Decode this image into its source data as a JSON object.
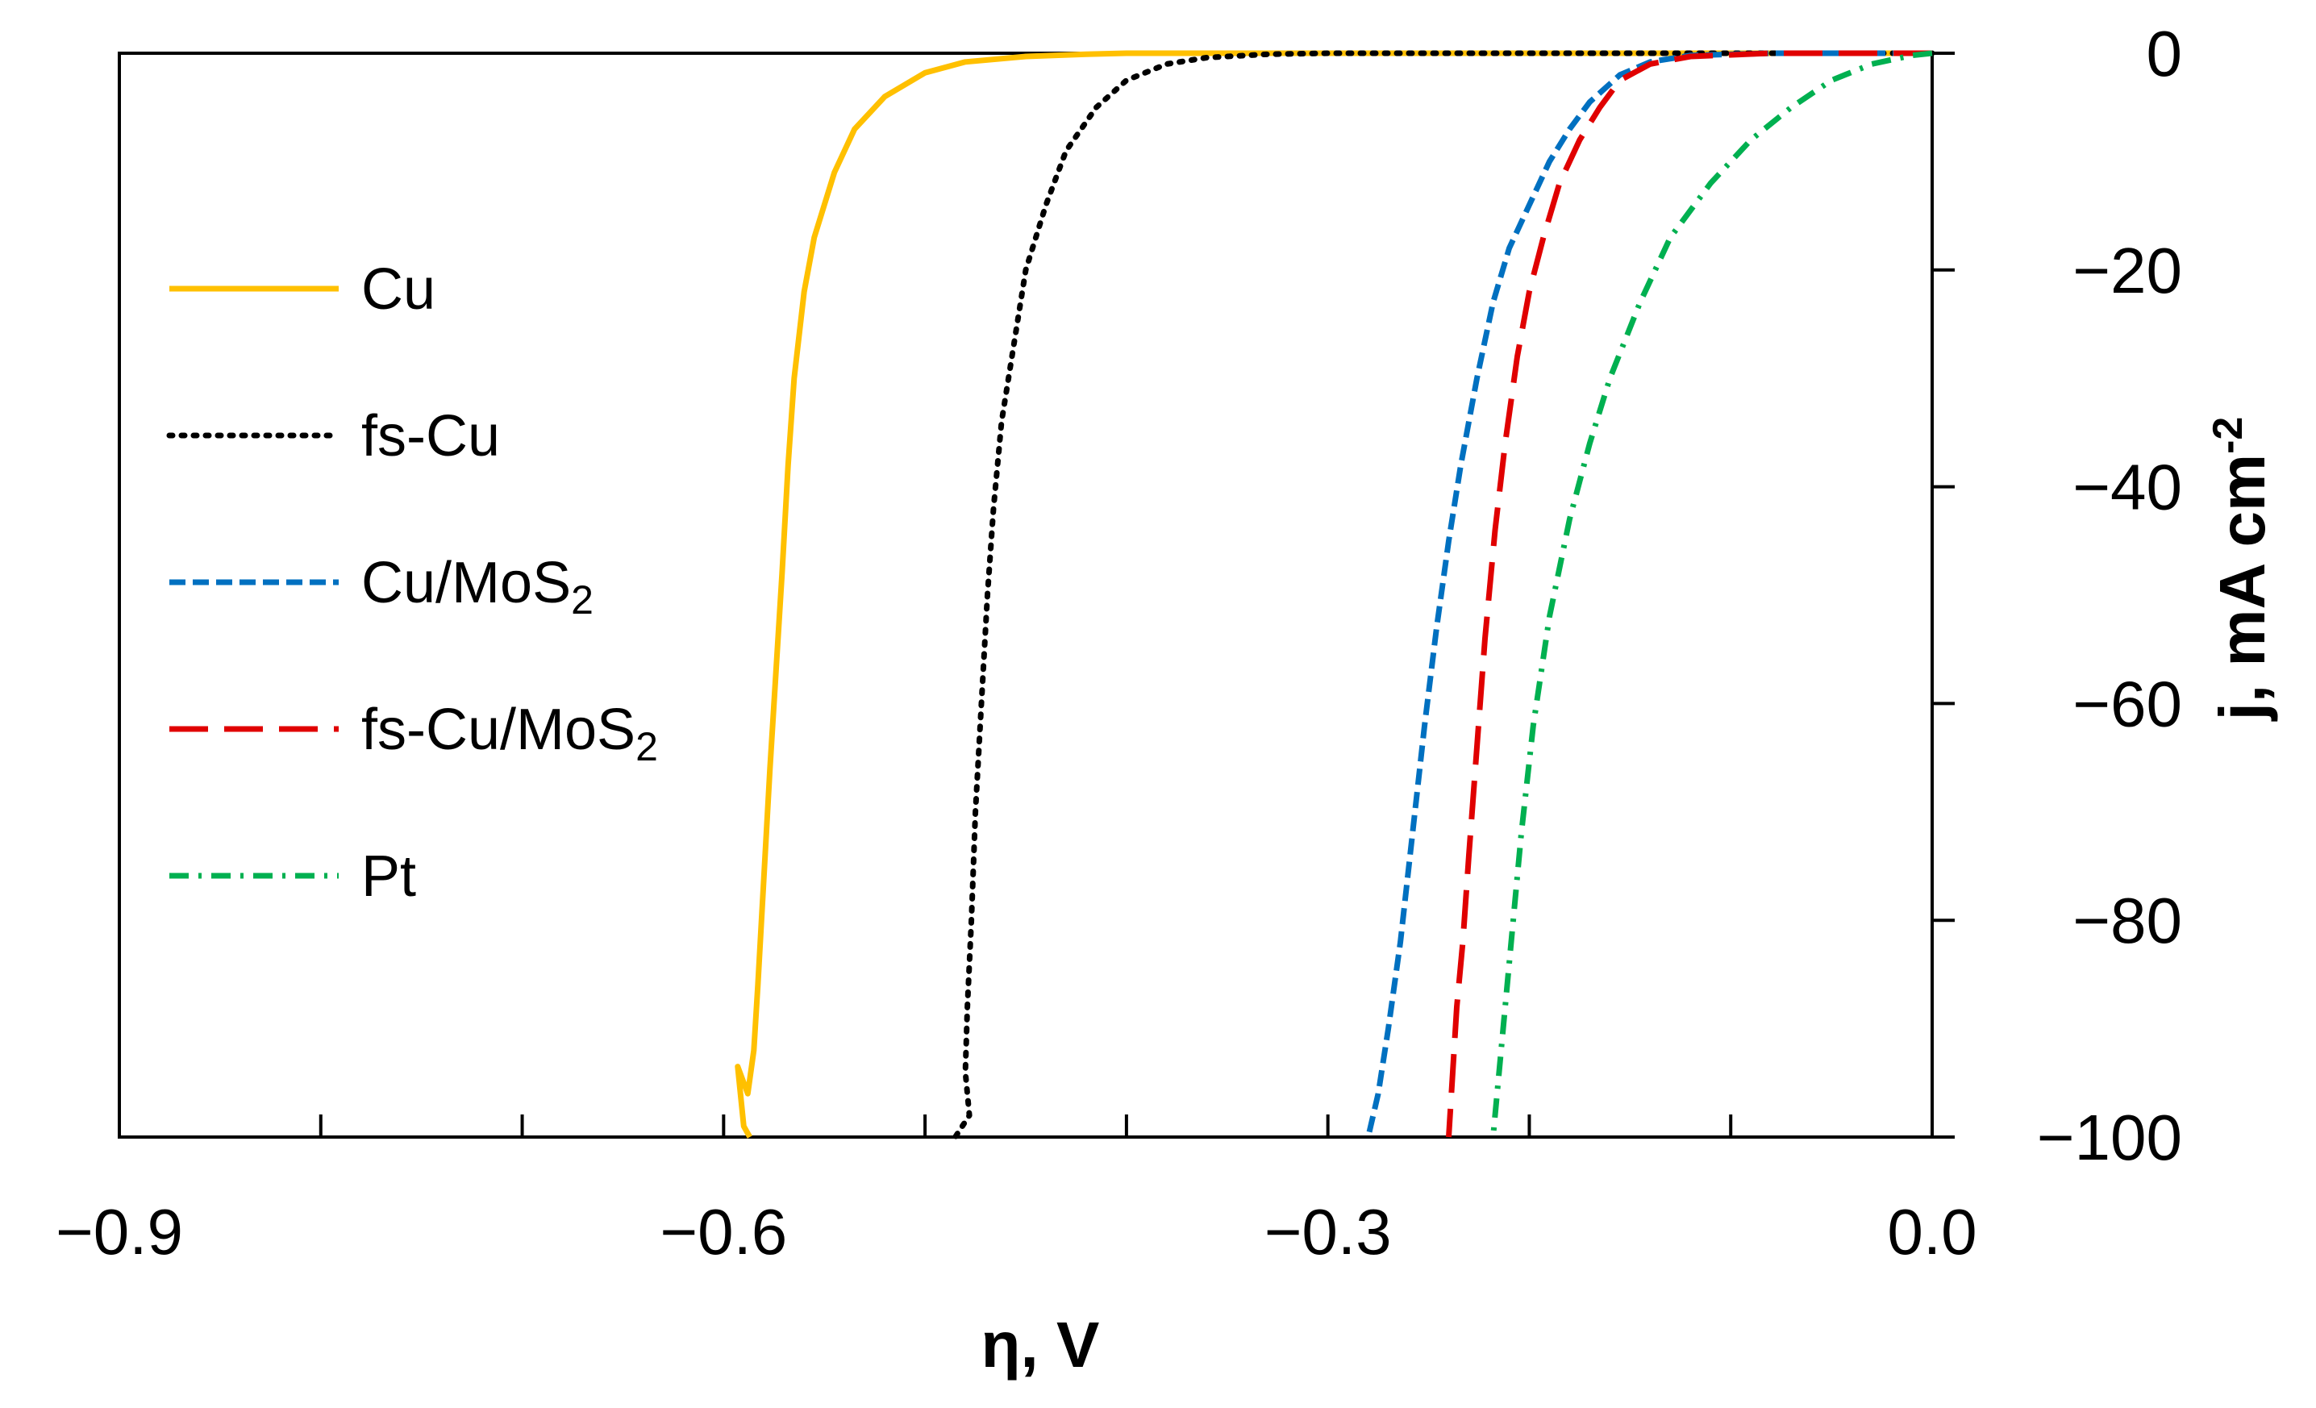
{
  "chart_data": {
    "type": "line",
    "title": "",
    "xlabel": "η, V",
    "ylabel": {
      "main": "j, mA cm",
      "sup": "-2"
    },
    "xlim": [
      -0.9,
      0.0
    ],
    "ylim": [
      -100,
      0
    ],
    "x_ticks": [
      -0.9,
      -0.8,
      -0.7,
      -0.6,
      -0.5,
      -0.4,
      -0.3,
      -0.2,
      -0.1,
      0.0
    ],
    "x_tick_labels": [
      {
        "value": -0.9,
        "text": "−0.9"
      },
      {
        "value": -0.6,
        "text": "−0.6"
      },
      {
        "value": -0.3,
        "text": "−0.3"
      },
      {
        "value": 0.0,
        "text": "0.0"
      }
    ],
    "y_ticks": [
      0,
      -20,
      -40,
      -60,
      -80,
      -100
    ],
    "y_tick_labels": [
      {
        "value": 0,
        "text": "0"
      },
      {
        "value": -20,
        "text": "−20"
      },
      {
        "value": -40,
        "text": "−40"
      },
      {
        "value": -60,
        "text": "−60"
      },
      {
        "value": -80,
        "text": "−80"
      },
      {
        "value": -100,
        "text": "−100"
      }
    ],
    "y_axis_side": "right",
    "grid": false,
    "legend_position": "left",
    "series": [
      {
        "name": "Cu",
        "label": "Cu",
        "sub": "",
        "color": "#FFC000",
        "dash": "solid",
        "points": [
          [
            0,
            0
          ],
          [
            -0.2,
            0
          ],
          [
            -0.3,
            0
          ],
          [
            -0.4,
            0
          ],
          [
            -0.42,
            -0.1
          ],
          [
            -0.45,
            -0.3
          ],
          [
            -0.48,
            -0.8
          ],
          [
            -0.5,
            -1.8
          ],
          [
            -0.52,
            -4
          ],
          [
            -0.535,
            -7
          ],
          [
            -0.545,
            -11
          ],
          [
            -0.555,
            -17
          ],
          [
            -0.56,
            -22
          ],
          [
            -0.565,
            -30
          ],
          [
            -0.568,
            -38
          ],
          [
            -0.571,
            -48
          ],
          [
            -0.574,
            -57
          ],
          [
            -0.577,
            -66
          ],
          [
            -0.58,
            -76
          ],
          [
            -0.583,
            -86
          ],
          [
            -0.585,
            -92
          ],
          [
            -0.588,
            -96
          ],
          [
            -0.593,
            -93.5
          ],
          [
            -0.59,
            -99
          ],
          [
            -0.587,
            -100
          ]
        ]
      },
      {
        "name": "fs-Cu",
        "label": "fs-Cu",
        "sub": "",
        "color": "#000000",
        "dash": "dotted",
        "points": [
          [
            0,
            0
          ],
          [
            -0.2,
            0
          ],
          [
            -0.3,
            0
          ],
          [
            -0.33,
            -0.1
          ],
          [
            -0.36,
            -0.4
          ],
          [
            -0.38,
            -1
          ],
          [
            -0.4,
            -2.5
          ],
          [
            -0.415,
            -5
          ],
          [
            -0.43,
            -9
          ],
          [
            -0.44,
            -14
          ],
          [
            -0.45,
            -20
          ],
          [
            -0.456,
            -27
          ],
          [
            -0.462,
            -34
          ],
          [
            -0.466,
            -42
          ],
          [
            -0.469,
            -50
          ],
          [
            -0.472,
            -60
          ],
          [
            -0.475,
            -70
          ],
          [
            -0.477,
            -80
          ],
          [
            -0.479,
            -88
          ],
          [
            -0.48,
            -94
          ],
          [
            -0.478,
            -98
          ],
          [
            -0.485,
            -100
          ]
        ]
      },
      {
        "name": "Cu/MoS2",
        "label": "Cu/MoS",
        "sub": "2",
        "color": "#0070C0",
        "dash": "dashed",
        "points": [
          [
            0,
            0
          ],
          [
            -0.08,
            0
          ],
          [
            -0.12,
            -0.2
          ],
          [
            -0.14,
            -0.8
          ],
          [
            -0.155,
            -2
          ],
          [
            -0.17,
            -4.5
          ],
          [
            -0.18,
            -7
          ],
          [
            -0.19,
            -10
          ],
          [
            -0.2,
            -14
          ],
          [
            -0.21,
            -18
          ],
          [
            -0.218,
            -23
          ],
          [
            -0.226,
            -30
          ],
          [
            -0.234,
            -38
          ],
          [
            -0.24,
            -45
          ],
          [
            -0.246,
            -53
          ],
          [
            -0.252,
            -62
          ],
          [
            -0.258,
            -72
          ],
          [
            -0.264,
            -82
          ],
          [
            -0.27,
            -90
          ],
          [
            -0.275,
            -96
          ],
          [
            -0.28,
            -100
          ]
        ]
      },
      {
        "name": "fs-Cu/MoS2",
        "label": "fs-Cu/MoS",
        "sub": "2",
        "color": "#E00000",
        "dash": "longdash",
        "points": [
          [
            0,
            0
          ],
          [
            -0.08,
            0
          ],
          [
            -0.12,
            -0.3
          ],
          [
            -0.14,
            -1
          ],
          [
            -0.155,
            -2.5
          ],
          [
            -0.165,
            -5
          ],
          [
            -0.175,
            -8
          ],
          [
            -0.185,
            -12
          ],
          [
            -0.193,
            -17
          ],
          [
            -0.2,
            -22
          ],
          [
            -0.206,
            -28
          ],
          [
            -0.212,
            -36
          ],
          [
            -0.217,
            -44
          ],
          [
            -0.222,
            -54
          ],
          [
            -0.226,
            -64
          ],
          [
            -0.23,
            -74
          ],
          [
            -0.233,
            -82
          ],
          [
            -0.236,
            -88
          ],
          [
            -0.238,
            -94
          ],
          [
            -0.24,
            -100
          ]
        ]
      },
      {
        "name": "Pt",
        "label": "Pt",
        "sub": "",
        "color": "#00B050",
        "dash": "dashdot",
        "points": [
          [
            0,
            0
          ],
          [
            -0.01,
            -0.2
          ],
          [
            -0.03,
            -1
          ],
          [
            -0.05,
            -2.5
          ],
          [
            -0.07,
            -5
          ],
          [
            -0.09,
            -8
          ],
          [
            -0.11,
            -12
          ],
          [
            -0.13,
            -17
          ],
          [
            -0.145,
            -23
          ],
          [
            -0.16,
            -30
          ],
          [
            -0.17,
            -36
          ],
          [
            -0.18,
            -43
          ],
          [
            -0.19,
            -52
          ],
          [
            -0.198,
            -62
          ],
          [
            -0.204,
            -72
          ],
          [
            -0.209,
            -82
          ],
          [
            -0.213,
            -90
          ],
          [
            -0.216,
            -96
          ],
          [
            -0.218,
            -100
          ]
        ]
      }
    ]
  }
}
